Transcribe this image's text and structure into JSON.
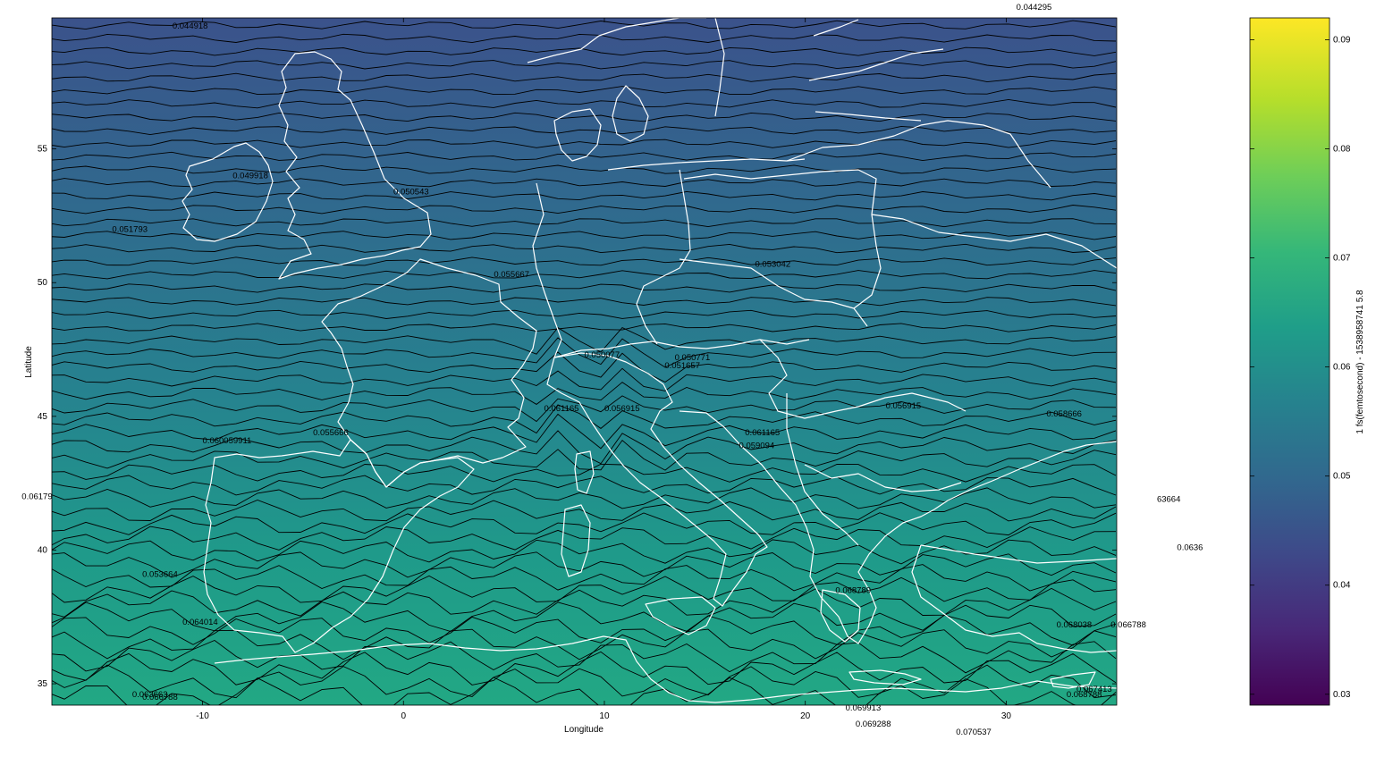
{
  "map": {
    "xlabel": "Longitude",
    "ylabel": "Latitude",
    "xlim": [
      -17.5,
      35.5
    ],
    "ylim": [
      34.2,
      59.9
    ],
    "xticks": [
      -10,
      0,
      10,
      20,
      30
    ],
    "yticks": [
      35,
      40,
      45,
      50,
      55
    ],
    "grid": false,
    "coastline_color": "#ffffff",
    "contour_color": "#000000",
    "contour_count": 52
  },
  "colorbar": {
    "label": "1 fs(femtosecond) - 153895874 15.8",
    "label_text": "1 fs(femtosecond) - 1538958741 5.8",
    "range": [
      0.029,
      0.092
    ],
    "ticks": [
      "0.03",
      "0.04",
      "0.05",
      "0.06",
      "0.07",
      "0.08",
      "0.09"
    ],
    "colormap": "viridis"
  },
  "contour_labels": [
    {
      "text": "0.044918",
      "lon": -11.5,
      "lat": 59.5
    },
    {
      "text": "0.049918",
      "lon": -8.5,
      "lat": 53.9
    },
    {
      "text": "0.050543",
      "lon": -0.5,
      "lat": 53.3
    },
    {
      "text": "0.051793",
      "lon": -14.5,
      "lat": 51.9
    },
    {
      "text": "0.053042",
      "lon": 17.5,
      "lat": 50.6
    },
    {
      "text": "0.055667",
      "lon": 4.5,
      "lat": 50.2
    },
    {
      "text": "0.050077",
      "lon": 9.0,
      "lat": 47.2
    },
    {
      "text": "0.050771",
      "lon": 13.5,
      "lat": 47.1
    },
    {
      "text": "0.051657",
      "lon": 13.0,
      "lat": 46.8
    },
    {
      "text": "0.061165",
      "lon": 7.0,
      "lat": 45.2
    },
    {
      "text": "0.056915",
      "lon": 10.0,
      "lat": 45.2
    },
    {
      "text": "0.056915",
      "lon": 24.0,
      "lat": 45.3
    },
    {
      "text": "0.058666",
      "lon": 32.0,
      "lat": 45.0
    },
    {
      "text": "0.055666",
      "lon": -4.5,
      "lat": 44.3
    },
    {
      "text": "0.060059911",
      "lon": -10.0,
      "lat": 44.0
    },
    {
      "text": "0.061165",
      "lon": 17.0,
      "lat": 44.3
    },
    {
      "text": "0.059094",
      "lon": 16.7,
      "lat": 43.8
    },
    {
      "text": "0.06179",
      "lon": -19.0,
      "lat": 41.9
    },
    {
      "text": "0.053664",
      "lon": -13.0,
      "lat": 39.0
    },
    {
      "text": "0.068789",
      "lon": 21.5,
      "lat": 38.4
    },
    {
      "text": "0.064014",
      "lon": -11.0,
      "lat": 37.2
    },
    {
      "text": "0.068038",
      "lon": 32.5,
      "lat": 37.1
    },
    {
      "text": "0.066788",
      "lon": 35.2,
      "lat": 37.1
    },
    {
      "text": "0.067413",
      "lon": 33.5,
      "lat": 34.7
    },
    {
      "text": "0.068788",
      "lon": 33.0,
      "lat": 34.5
    },
    {
      "text": "0.063663",
      "lon": -13.5,
      "lat": 34.5
    },
    {
      "text": "0.066788",
      "lon": -13.0,
      "lat": 34.4
    },
    {
      "text": "0.069913",
      "lon": 22.0,
      "lat": 34.0
    },
    {
      "text": "0.069288",
      "lon": 22.5,
      "lat": 33.4
    },
    {
      "text": "0.070537",
      "lon": 27.5,
      "lat": 33.1
    },
    {
      "text": "0.044295",
      "lon": 30.5,
      "lat": 60.2
    },
    {
      "text": "63664",
      "lon": 37.5,
      "lat": 41.8
    },
    {
      "text": "0.0636",
      "lon": 38.5,
      "lat": 40.0
    }
  ]
}
